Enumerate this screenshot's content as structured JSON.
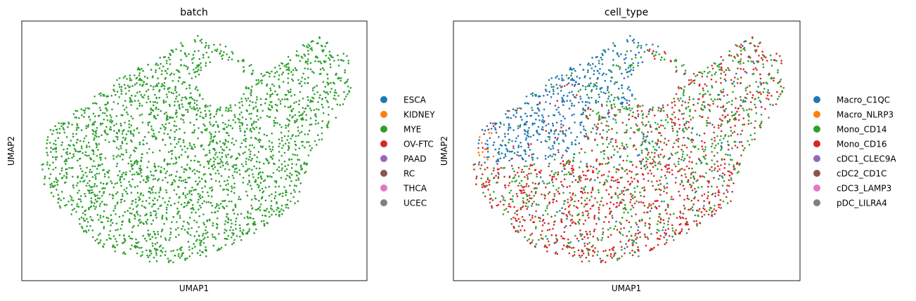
{
  "chart_data": [
    {
      "type": "scatter",
      "title": "batch",
      "xlabel": "UMAP1",
      "ylabel": "UMAP2",
      "xlim": [
        0,
        1
      ],
      "ylim": [
        0,
        1
      ],
      "grid": false,
      "axis_ticks": false,
      "legend_placement": "right-outside",
      "legend": [
        {
          "name": "ESCA",
          "color": "#1f77b4"
        },
        {
          "name": "KIDNEY",
          "color": "#ff7f0e"
        },
        {
          "name": "MYE",
          "color": "#2ca02c"
        },
        {
          "name": "OV-FTC",
          "color": "#d62728"
        },
        {
          "name": "PAAD",
          "color": "#9467bd"
        },
        {
          "name": "RC",
          "color": "#8c564b"
        },
        {
          "name": "THCA",
          "color": "#e377c2"
        },
        {
          "name": "UCEC",
          "color": "#7f7f7f"
        }
      ],
      "colored_by": "MYE"
    },
    {
      "type": "scatter",
      "title": "cell_type",
      "xlabel": "UMAP1",
      "ylabel": "UMAP2",
      "xlim": [
        0,
        1
      ],
      "ylim": [
        0,
        1
      ],
      "grid": false,
      "axis_ticks": false,
      "legend_placement": "right-outside",
      "legend": [
        {
          "name": "Macro_C1QC",
          "color": "#1f77b4"
        },
        {
          "name": "Macro_NLRP3",
          "color": "#ff7f0e"
        },
        {
          "name": "Mono_CD14",
          "color": "#2ca02c"
        },
        {
          "name": "Mono_CD16",
          "color": "#d62728"
        },
        {
          "name": "cDC1_CLEC9A",
          "color": "#9467bd"
        },
        {
          "name": "cDC2_CD1C",
          "color": "#8c564b"
        },
        {
          "name": "cDC3_LAMP3",
          "color": "#e377c2"
        },
        {
          "name": "pDC_LILRA4",
          "color": "#7f7f7f"
        }
      ]
    }
  ]
}
